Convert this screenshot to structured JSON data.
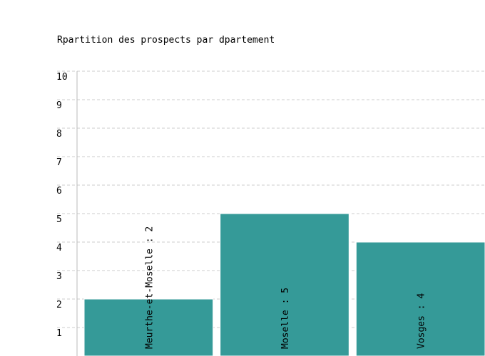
{
  "chart_data": {
    "type": "bar",
    "title": "Rpartition des prospects par dpartement",
    "xlabel": "",
    "ylabel": "",
    "categories": [
      "Meurthe-et-Moselle",
      "Moselle",
      "Vosges"
    ],
    "values": [
      2,
      5,
      4
    ],
    "bar_labels": [
      "Meurthe-et-Moselle : 2",
      "Moselle : 5",
      "Vosges : 4"
    ],
    "ylim": [
      0,
      10
    ],
    "yticks": [
      "1",
      "2",
      "3",
      "4",
      "5",
      "6",
      "7",
      "8",
      "9",
      "10"
    ],
    "grid": true,
    "legend": "none"
  },
  "colors": {
    "bar": "#359a98",
    "grid": "#cccccc",
    "axis": "#bbbbbb"
  }
}
